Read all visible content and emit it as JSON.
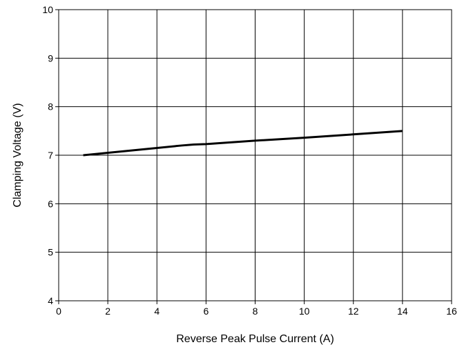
{
  "chart_data": {
    "type": "line",
    "title": "",
    "xlabel": "Reverse Peak Pulse Current (A)",
    "ylabel": "Clamping Voltage (V)",
    "xlim": [
      0,
      16
    ],
    "ylim": [
      4,
      10
    ],
    "xticks": [
      0,
      2,
      4,
      6,
      8,
      10,
      12,
      14,
      16
    ],
    "yticks": [
      4,
      5,
      6,
      7,
      8,
      9,
      10
    ],
    "grid": true,
    "series": [
      {
        "color": "#000000",
        "x": [
          1,
          2,
          3,
          4,
          5,
          5.5,
          6,
          8,
          10,
          12,
          14
        ],
        "y": [
          7.0,
          7.05,
          7.1,
          7.15,
          7.2,
          7.22,
          7.23,
          7.3,
          7.36,
          7.43,
          7.5
        ]
      }
    ]
  }
}
